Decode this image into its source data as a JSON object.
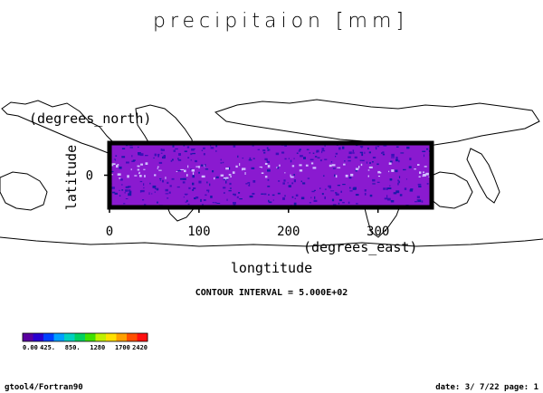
{
  "chart_data": {
    "type": "heatmap",
    "title": "precipitaion [mm]",
    "xlabel": "longtitude",
    "xunits": "(degrees_east)",
    "ylabel": "latitude",
    "yunits": "(degrees_north)",
    "x_ticks": [
      0,
      100,
      200,
      300
    ],
    "y_ticks": [
      0
    ],
    "xlim": [
      0,
      360
    ],
    "ylim": [
      -30,
      30
    ],
    "contour_note": "CONTOUR INTERVAL = 5.000E+02",
    "colorbar": {
      "labels": [
        "0.00",
        "425.",
        "850.",
        "1280",
        "1700",
        "2420"
      ],
      "colors": [
        "#5a00a0",
        "#2a00d0",
        "#0040ff",
        "#00a0ff",
        "#00d0c0",
        "#00d060",
        "#40e000",
        "#c0f000",
        "#ffe000",
        "#ffa000",
        "#ff5000",
        "#ff1010"
      ]
    },
    "field_colors": {
      "background": "#8a1ad0",
      "low": "#3a10b8",
      "very_low": "#1a1aa8",
      "high": "#d0c0ff"
    },
    "grid": false
  },
  "footer": {
    "left": "gtool4/Fortran90",
    "right": "date: 3/ 7/22 page: 1"
  }
}
